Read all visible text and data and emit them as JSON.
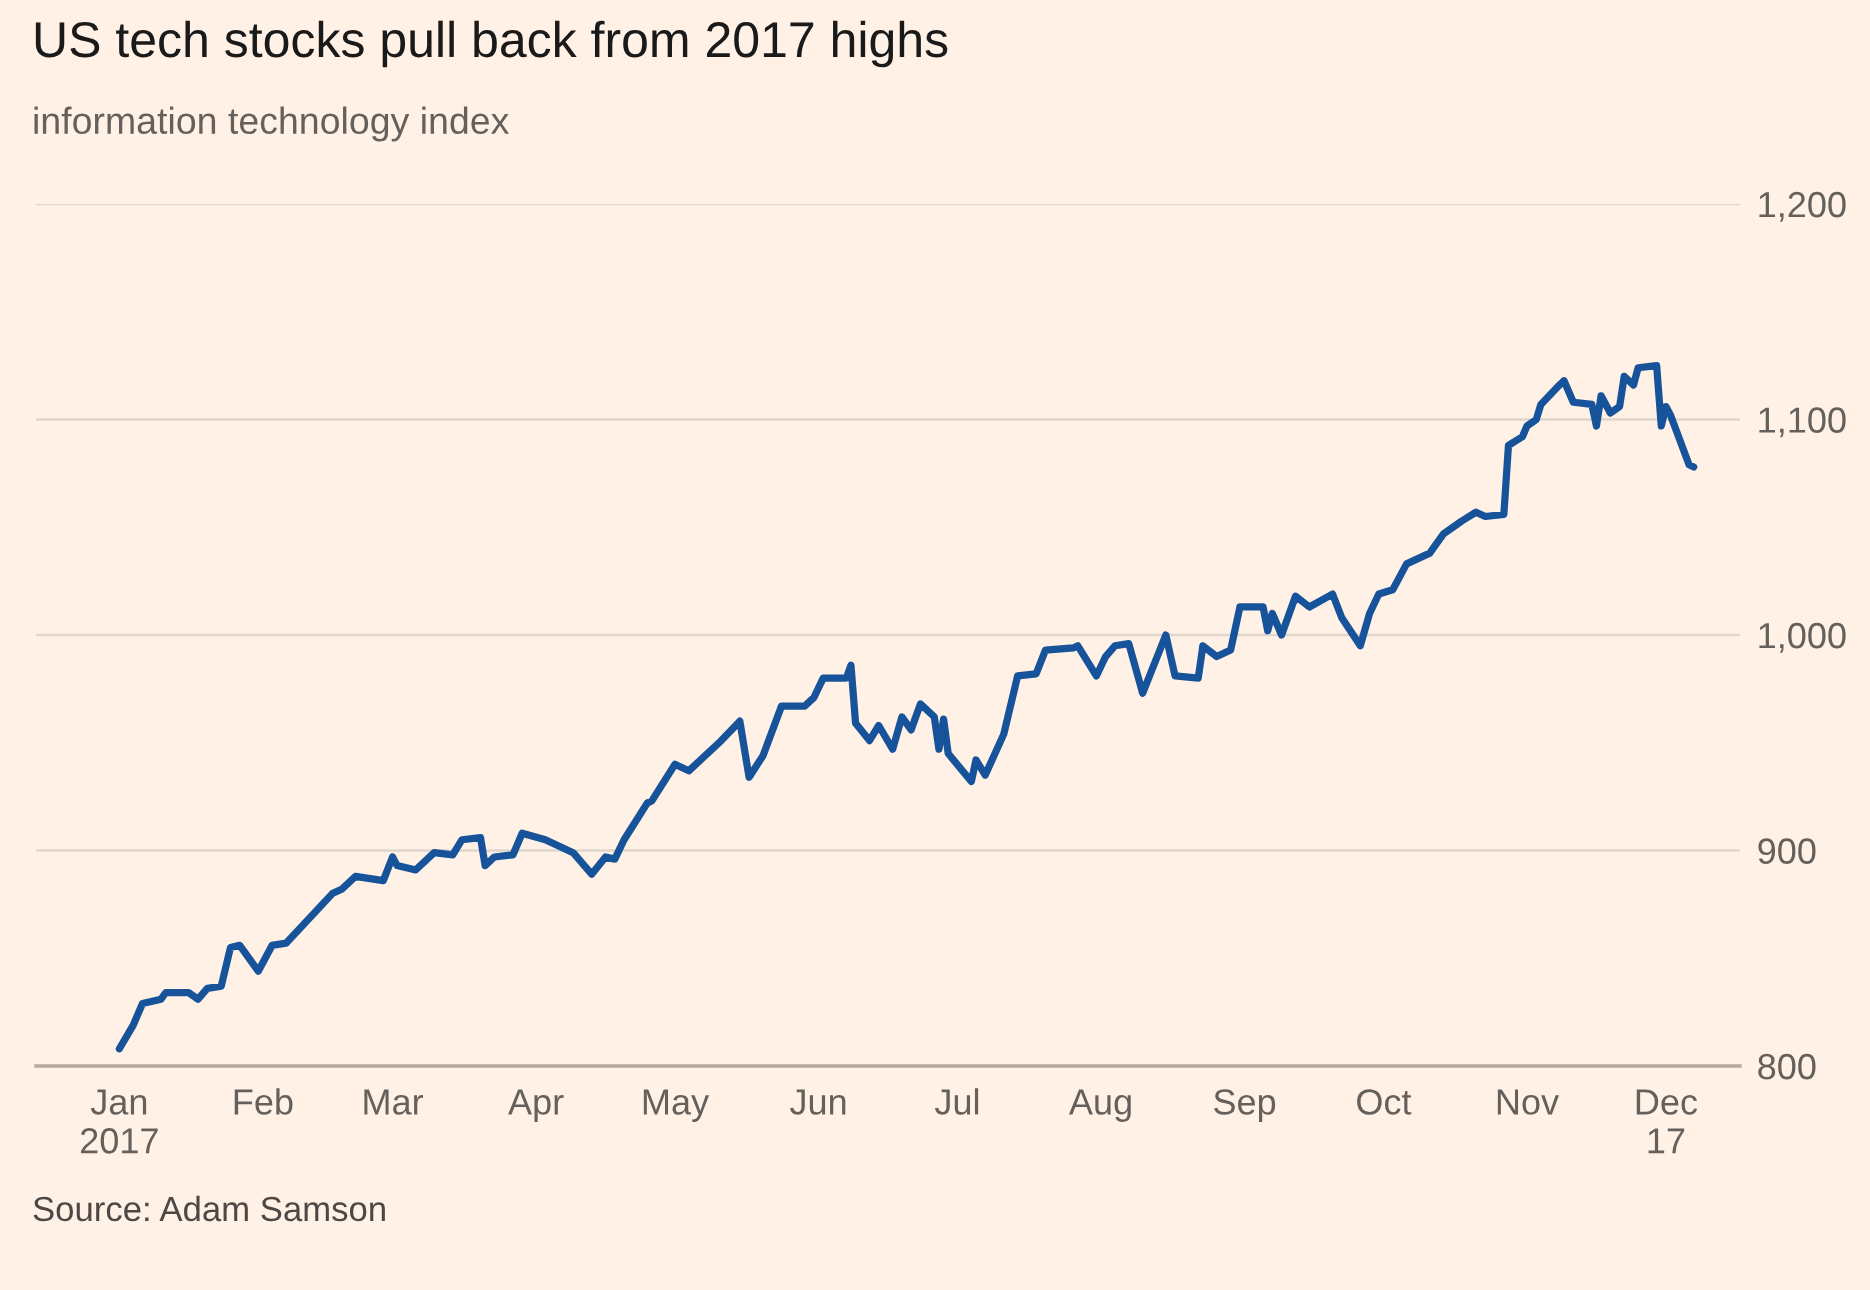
{
  "chart_data": {
    "type": "line",
    "title": "US tech stocks pull back from 2017 highs",
    "subtitle": "information technology index",
    "annotations": [
      "Source: Adam Samson"
    ],
    "x": [
      "2017-01-01",
      "2017-01-04",
      "2017-01-06",
      "2017-01-10",
      "2017-01-11",
      "2017-01-16",
      "2017-01-18",
      "2017-01-20",
      "2017-01-23",
      "2017-01-25",
      "2017-01-27",
      "2017-01-31",
      "2017-02-03",
      "2017-02-06",
      "2017-02-16",
      "2017-02-18",
      "2017-02-21",
      "2017-02-27",
      "2017-03-01",
      "2017-03-02",
      "2017-03-06",
      "2017-03-10",
      "2017-03-14",
      "2017-03-16",
      "2017-03-20",
      "2017-03-21",
      "2017-03-23",
      "2017-03-27",
      "2017-03-29",
      "2017-04-03",
      "2017-04-09",
      "2017-04-13",
      "2017-04-16",
      "2017-04-18",
      "2017-04-20",
      "2017-04-25",
      "2017-04-26",
      "2017-05-01",
      "2017-05-02",
      "2017-05-04",
      "2017-05-11",
      "2017-05-15",
      "2017-05-17",
      "2017-05-20",
      "2017-05-24",
      "2017-05-29",
      "2017-05-31",
      "2017-06-02",
      "2017-06-07",
      "2017-06-08",
      "2017-06-09",
      "2017-06-12",
      "2017-06-14",
      "2017-06-17",
      "2017-06-19",
      "2017-06-21",
      "2017-06-23",
      "2017-06-26",
      "2017-06-27",
      "2017-06-28",
      "2017-06-29",
      "2017-07-04",
      "2017-07-05",
      "2017-07-07",
      "2017-07-11",
      "2017-07-14",
      "2017-07-18",
      "2017-07-20",
      "2017-07-26",
      "2017-07-27",
      "2017-07-31",
      "2017-08-02",
      "2017-08-04",
      "2017-08-07",
      "2017-08-10",
      "2017-08-15",
      "2017-08-17",
      "2017-08-22",
      "2017-08-23",
      "2017-08-26",
      "2017-08-29",
      "2017-08-31",
      "2017-09-05",
      "2017-09-06",
      "2017-09-07",
      "2017-09-09",
      "2017-09-12",
      "2017-09-15",
      "2017-09-20",
      "2017-09-22",
      "2017-09-26",
      "2017-09-28",
      "2017-09-30",
      "2017-10-03",
      "2017-10-06",
      "2017-10-11",
      "2017-10-14",
      "2017-10-18",
      "2017-10-21",
      "2017-10-23",
      "2017-10-27",
      "2017-10-28",
      "2017-10-31",
      "2017-11-01",
      "2017-11-03",
      "2017-11-04",
      "2017-11-08",
      "2017-11-09",
      "2017-11-11",
      "2017-11-15",
      "2017-11-16",
      "2017-11-17",
      "2017-11-19",
      "2017-11-21",
      "2017-11-22",
      "2017-11-24",
      "2017-11-25",
      "2017-11-29",
      "2017-11-30",
      "2017-12-01",
      "2017-12-02",
      "2017-12-06",
      "2017-12-07"
    ],
    "series": [
      {
        "color": "#17539a",
        "values": [
          808,
          819,
          829,
          831,
          834,
          834,
          831,
          836,
          837,
          855,
          856,
          844,
          856,
          857,
          880,
          882,
          888,
          886,
          897,
          893,
          891,
          899,
          898,
          905,
          906,
          893,
          897,
          898,
          908,
          905,
          899,
          889,
          897,
          896,
          905,
          922,
          923,
          940,
          939,
          937,
          951,
          960,
          934,
          944,
          967,
          967,
          971,
          980,
          980,
          986,
          959,
          951,
          958,
          947,
          962,
          956,
          968,
          962,
          947,
          961,
          945,
          932,
          942,
          935,
          954,
          981,
          982,
          993,
          994,
          995,
          981,
          990,
          995,
          996,
          973,
          1000,
          981,
          980,
          995,
          990,
          993,
          1013,
          1013,
          1002,
          1010,
          1000,
          1018,
          1013,
          1019,
          1008,
          995,
          1010,
          1019,
          1021,
          1033,
          1038,
          1047,
          1053,
          1057,
          1055,
          1056,
          1088,
          1092,
          1097,
          1100,
          1107,
          1116,
          1118,
          1108,
          1107,
          1097,
          1111,
          1103,
          1106,
          1120,
          1116,
          1124,
          1125,
          1097,
          1106,
          1102,
          1079,
          1078
        ]
      }
    ],
    "xlim": [
      "2016-12-14",
      "2017-12-17"
    ],
    "xticks": [
      {
        "value": "2017-01-01",
        "label": "Jan\n2017"
      },
      {
        "value": "2017-02-01",
        "label": "Feb"
      },
      {
        "value": "2017-03-01",
        "label": "Mar"
      },
      {
        "value": "2017-04-01",
        "label": "Apr"
      },
      {
        "value": "2017-05-01",
        "label": "May"
      },
      {
        "value": "2017-06-01",
        "label": "Jun"
      },
      {
        "value": "2017-07-01",
        "label": "Jul"
      },
      {
        "value": "2017-08-01",
        "label": "Aug"
      },
      {
        "value": "2017-09-01",
        "label": "Sep"
      },
      {
        "value": "2017-10-01",
        "label": "Oct"
      },
      {
        "value": "2017-11-01",
        "label": "Nov"
      },
      {
        "value": "2017-12-01",
        "label": "Dec\n17"
      }
    ],
    "ylim": [
      800,
      1200
    ],
    "yticks": [
      800,
      900,
      {
        "value": 1000,
        "label": "1,000"
      },
      {
        "value": 1100,
        "label": "1,100"
      },
      {
        "value": 1200,
        "label": "1,200"
      }
    ],
    "grid": "y",
    "legend": false,
    "marker": "none",
    "line_style": "solid"
  }
}
